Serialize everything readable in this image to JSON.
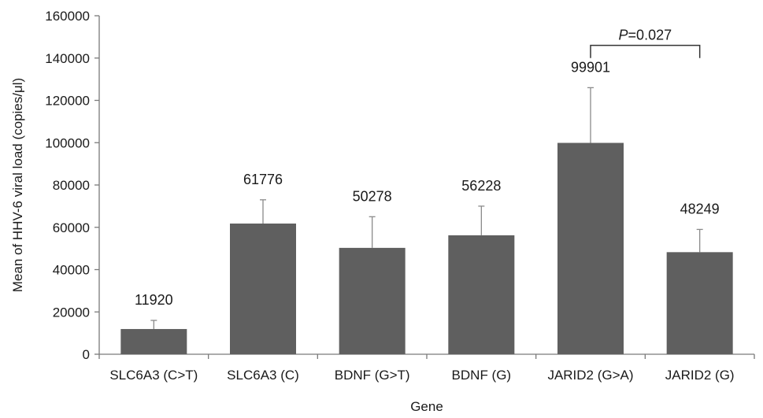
{
  "chart_data": {
    "type": "bar",
    "categories": [
      "SLC6A3 (C>T)",
      "SLC6A3 (C)",
      "BDNF (G>T)",
      "BDNF (G)",
      "JARID2 (G>A)",
      "JARID2 (G)"
    ],
    "values": [
      11920,
      61776,
      50278,
      56228,
      99901,
      48249
    ],
    "value_labels": [
      "11920",
      "61776",
      "50278",
      "56228",
      "99901",
      "48249"
    ],
    "error_upper": [
      16000,
      73000,
      65000,
      70000,
      126000,
      59000
    ],
    "xlabel": "Gene",
    "ylabel": "Mean of HHV-6 viral load (copies/μl)",
    "ylim": [
      0,
      160000
    ],
    "yticks": [
      0,
      20000,
      40000,
      60000,
      80000,
      100000,
      120000,
      140000,
      160000
    ],
    "ytick_labels": [
      "0",
      "20000",
      "40000",
      "60000",
      "80000",
      "100000",
      "120000",
      "140000",
      "160000"
    ],
    "grid": false,
    "bar_color": "#5f5f5f",
    "significance": {
      "from_category": "JARID2 (G>A)",
      "to_category": "JARID2 (G)",
      "p_symbol": "P",
      "p_value_text": "=0.027",
      "level": 146000,
      "drop_to": 140000
    }
  }
}
